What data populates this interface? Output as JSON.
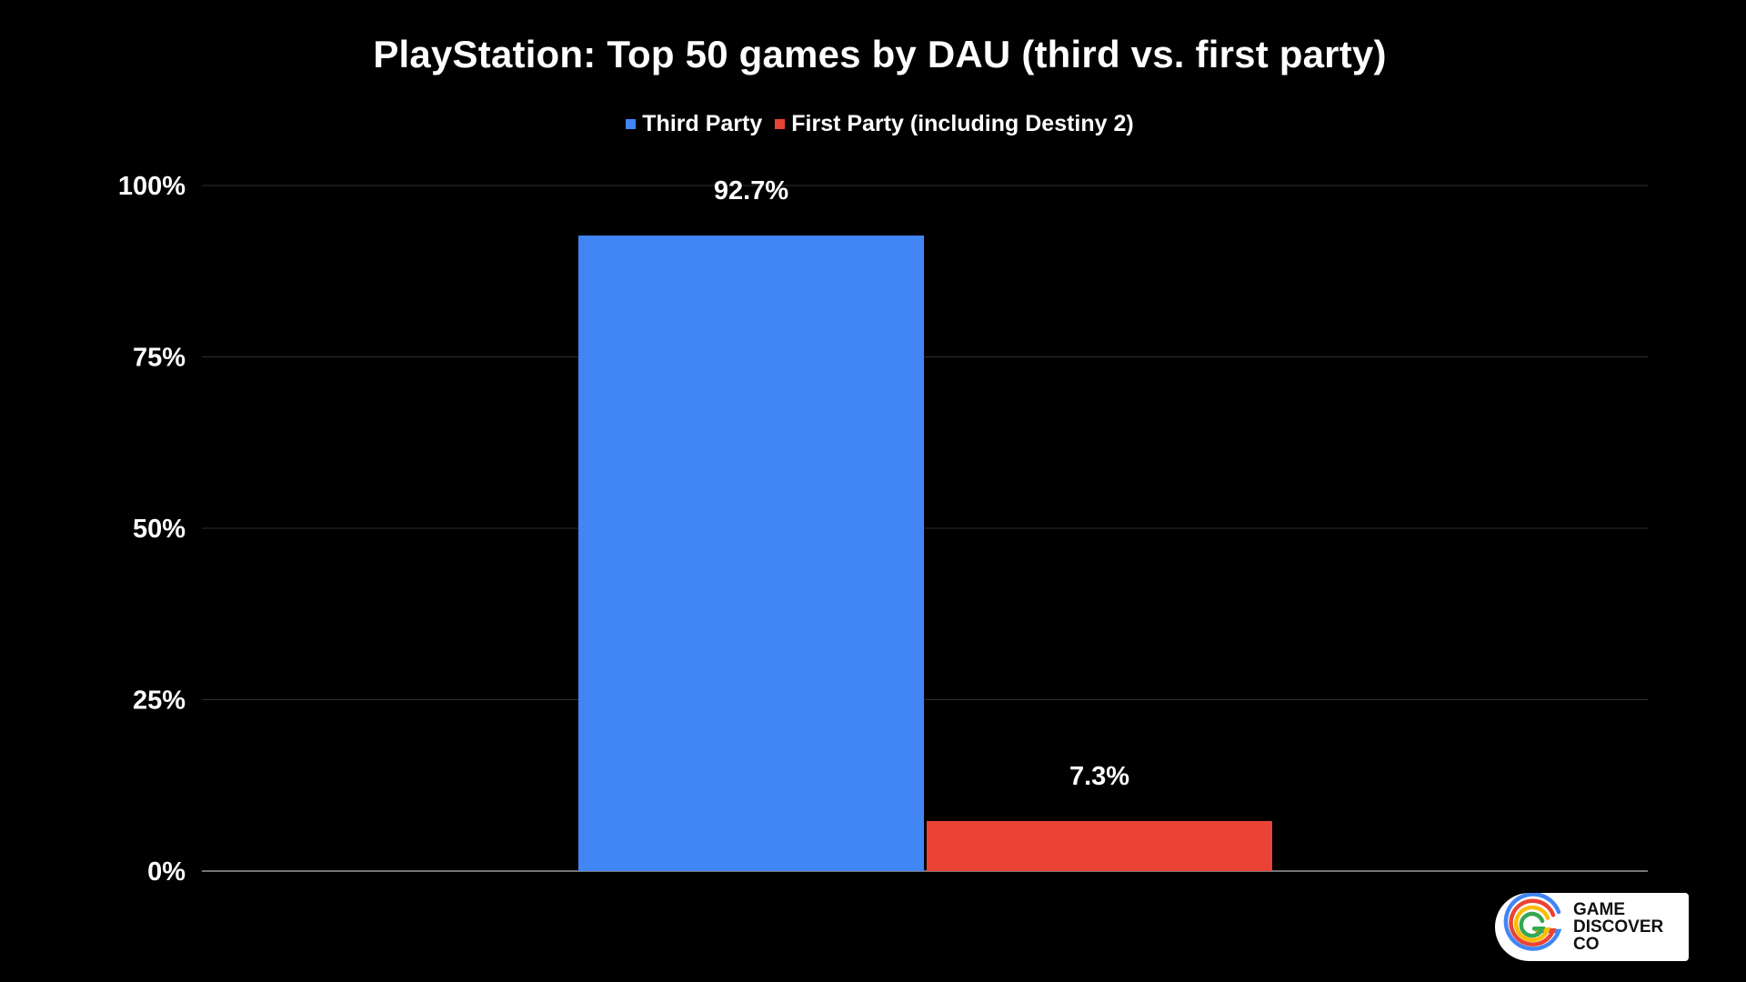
{
  "chart_data": {
    "type": "bar",
    "title": "PlayStation: Top 50 games by DAU (third vs. first party)",
    "xlabel": "",
    "ylabel": "",
    "ylim": [
      0,
      100
    ],
    "y_ticks": [
      "0%",
      "25%",
      "50%",
      "75%",
      "100%"
    ],
    "y_tick_values": [
      0,
      25,
      50,
      75,
      100
    ],
    "grid": true,
    "legend_position": "top",
    "series": [
      {
        "name": "Third Party",
        "values": [
          92.7
        ],
        "label": "92.7%",
        "color": "#4285f4"
      },
      {
        "name": "First Party (including Destiny 2)",
        "values": [
          7.3
        ],
        "label": "7.3%",
        "color": "#ea4335"
      }
    ]
  },
  "logo": {
    "lines": [
      "GAME",
      "DISCOVER",
      "CO"
    ],
    "colors": [
      "#4285f4",
      "#ea4335",
      "#fbbc04",
      "#34a853"
    ]
  }
}
